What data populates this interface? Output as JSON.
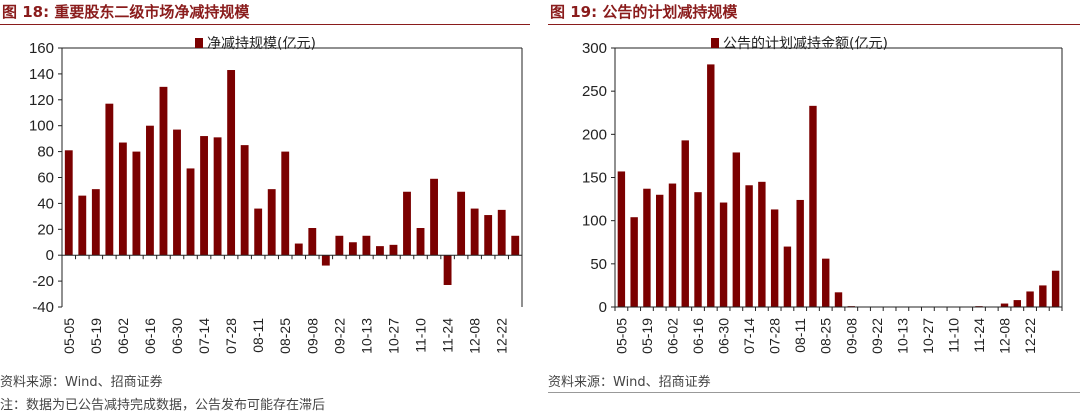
{
  "figures": [
    {
      "title": "图 18:  重要股东二级市场净减持规模",
      "source": "资料来源：Wind、招商证券"
    },
    {
      "title": "图 19:  公告的计划减持规模",
      "source": "资料来源：Wind、招商证券"
    }
  ],
  "note": "注：数据为已公告减持完成数据，公告发布可能存在滞后",
  "chart_data": [
    {
      "type": "bar",
      "title": "",
      "legend": "净减持规模(亿元)",
      "legend_position": "top",
      "color": "#7b0000",
      "ylim": [
        -40,
        160
      ],
      "yticks": [
        -40,
        -20,
        0,
        20,
        40,
        60,
        80,
        100,
        120,
        140,
        160
      ],
      "xticklabels": [
        "05-05",
        "05-19",
        "06-02",
        "06-16",
        "06-30",
        "07-14",
        "07-28",
        "08-11",
        "08-25",
        "09-08",
        "09-22",
        "10-13",
        "10-27",
        "11-10",
        "11-24",
        "12-08",
        "12-22"
      ],
      "values": [
        81,
        46,
        51,
        117,
        87,
        80,
        100,
        130,
        97,
        67,
        92,
        91,
        143,
        85,
        36,
        51,
        80,
        9,
        21,
        -8,
        15,
        10,
        15,
        7,
        8,
        49,
        21,
        59,
        -23,
        49,
        36,
        31,
        35,
        15
      ],
      "grid": false
    },
    {
      "type": "bar",
      "title": "",
      "legend": "公告的计划减持金额(亿元)",
      "legend_position": "top",
      "color": "#7b0000",
      "ylim": [
        0,
        300
      ],
      "yticks": [
        0,
        50,
        100,
        150,
        200,
        250,
        300
      ],
      "xticklabels": [
        "05-05",
        "05-19",
        "06-02",
        "06-16",
        "06-30",
        "07-14",
        "07-28",
        "08-11",
        "08-25",
        "09-08",
        "09-22",
        "10-13",
        "10-27",
        "11-10",
        "11-24",
        "12-08",
        "12-22"
      ],
      "values": [
        157,
        104,
        137,
        130,
        143,
        193,
        133,
        281,
        121,
        179,
        141,
        145,
        113,
        70,
        124,
        233,
        56,
        17,
        1,
        0,
        0,
        0,
        0,
        0,
        0,
        0,
        0,
        0,
        1,
        0,
        4,
        8,
        18,
        25,
        42
      ],
      "grid": false
    }
  ]
}
